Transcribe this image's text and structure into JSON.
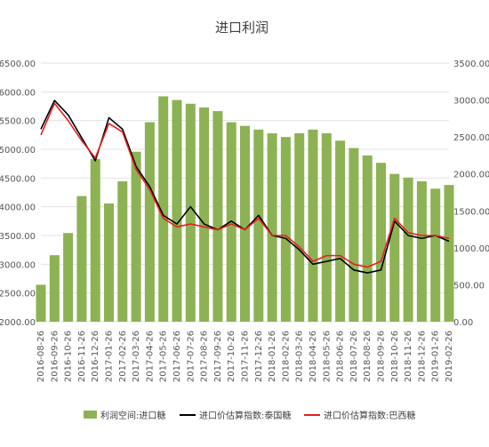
{
  "chart_data": {
    "type": "bar+line",
    "title": "进口利润",
    "colors": {
      "profit_bar": "#8DB254",
      "thai": "#000000",
      "brazil": "#E32020",
      "axis_text": "#555555",
      "title_text": "#404040"
    },
    "x_tick_labels": [
      "2016-08-26",
      "2016-09-26",
      "2016-10-26",
      "2016-11-26",
      "2016-12-26",
      "2017-01-26",
      "2017-02-26",
      "2017-03-26",
      "2017-04-26",
      "2017-05-26",
      "2017-06-26",
      "2017-07-26",
      "2017-08-26",
      "2017-09-26",
      "2017-10-26",
      "2017-11-26",
      "2017-12-26",
      "2018-01-26",
      "2018-02-26",
      "2018-03-26",
      "2018-04-26",
      "2018-05-26",
      "2018-06-26",
      "2018-07-26",
      "2018-08-26",
      "2018-09-26",
      "2018-10-26",
      "2018-11-26",
      "2018-12-26",
      "2019-01-26",
      "2019-02-26"
    ],
    "left_axis": {
      "ylim": [
        2000,
        6500
      ],
      "ticks": [
        "2000.00",
        "2500.00",
        "3000.00",
        "3500.00",
        "4000.00",
        "4500.00",
        "5000.00",
        "5500.00",
        "6000.00",
        "6500.00"
      ]
    },
    "right_axis": {
      "ylim": [
        0,
        3500
      ],
      "ticks": [
        "0.00",
        "500.00",
        "1000.00",
        "1500.00",
        "2000.00",
        "2500.00",
        "3000.00",
        "3500.00"
      ]
    },
    "series": [
      {
        "name": "利润空间:进口糖",
        "axis": "right",
        "kind": "bar",
        "x": [
          "2016-08-26",
          "2016-09-26",
          "2016-10-26",
          "2016-11-26",
          "2016-12-26",
          "2017-01-26",
          "2017-02-26",
          "2017-03-26",
          "2017-04-26",
          "2017-05-26",
          "2017-06-26",
          "2017-07-26",
          "2017-08-26",
          "2017-09-26",
          "2017-10-26",
          "2017-11-26",
          "2017-12-26",
          "2018-01-26",
          "2018-02-26",
          "2018-03-26",
          "2018-04-26",
          "2018-05-26",
          "2018-06-26",
          "2018-07-26",
          "2018-08-26",
          "2018-09-26",
          "2018-10-26",
          "2018-11-26",
          "2018-12-26",
          "2019-01-26",
          "2019-02-26"
        ],
        "values": [
          500,
          900,
          1200,
          1700,
          2200,
          1600,
          1900,
          2300,
          2700,
          3050,
          3000,
          2950,
          2900,
          2850,
          2700,
          2650,
          2600,
          2550,
          2500,
          2550,
          2600,
          2550,
          2450,
          2350,
          2250,
          2150,
          2000,
          1950,
          1900,
          1800,
          1850
        ]
      },
      {
        "name": "进口价估算指数:泰国糖",
        "axis": "left",
        "kind": "line",
        "x": [
          "2016-08-26",
          "2016-09-26",
          "2016-10-26",
          "2016-11-26",
          "2016-12-26",
          "2017-01-26",
          "2017-02-26",
          "2017-03-26",
          "2017-04-26",
          "2017-05-26",
          "2017-06-26",
          "2017-07-26",
          "2017-08-26",
          "2017-09-26",
          "2017-10-26",
          "2017-11-26",
          "2017-12-26",
          "2018-01-26",
          "2018-02-26",
          "2018-03-26",
          "2018-04-26",
          "2018-05-26",
          "2018-06-26",
          "2018-07-26",
          "2018-08-26",
          "2018-09-26",
          "2018-10-26",
          "2018-11-26",
          "2018-12-26",
          "2019-01-26",
          "2019-02-26"
        ],
        "values": [
          5350,
          5850,
          5600,
          5200,
          4800,
          5550,
          5350,
          4700,
          4350,
          3850,
          3700,
          4000,
          3700,
          3600,
          3750,
          3600,
          3850,
          3500,
          3450,
          3250,
          3000,
          3050,
          3100,
          2900,
          2850,
          2900,
          3750,
          3500,
          3450,
          3500,
          3400
        ]
      },
      {
        "name": "进口价估算指数:巴西糖",
        "axis": "left",
        "kind": "line",
        "x": [
          "2016-08-26",
          "2016-09-26",
          "2016-10-26",
          "2016-11-26",
          "2016-12-26",
          "2017-01-26",
          "2017-02-26",
          "2017-03-26",
          "2017-04-26",
          "2017-05-26",
          "2017-06-26",
          "2017-07-26",
          "2017-08-26",
          "2017-09-26",
          "2017-10-26",
          "2017-11-26",
          "2017-12-26",
          "2018-01-26",
          "2018-02-26",
          "2018-03-26",
          "2018-04-26",
          "2018-05-26",
          "2018-06-26",
          "2018-07-26",
          "2018-08-26",
          "2018-09-26",
          "2018-10-26",
          "2018-11-26",
          "2018-12-26",
          "2019-01-26",
          "2019-02-26"
        ],
        "values": [
          5250,
          5800,
          5500,
          5150,
          4850,
          5450,
          5300,
          4650,
          4300,
          3800,
          3650,
          3700,
          3650,
          3600,
          3700,
          3600,
          3800,
          3500,
          3500,
          3300,
          3050,
          3150,
          3150,
          3000,
          2950,
          3050,
          3800,
          3550,
          3500,
          3500,
          3450
        ]
      }
    ],
    "legend": {
      "placement": "bottom",
      "items": [
        "利润空间:进口糖",
        "进口价估算指数:泰国糖",
        "进口价估算指数:巴西糖"
      ]
    }
  }
}
